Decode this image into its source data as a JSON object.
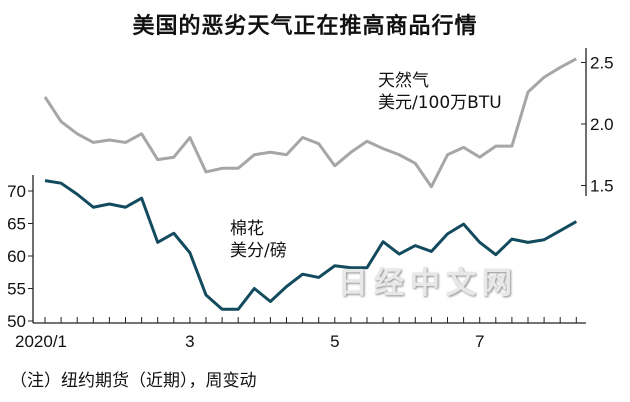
{
  "chart_data": {
    "type": "line",
    "title": "美国的恶劣天气正在推高商品行情",
    "note": "（注）纽约期货（近期），周变动",
    "watermark": "日经中文网",
    "x_tick_labels": [
      "2020/1",
      "3",
      "5",
      "7"
    ],
    "x_tick_label_index": [
      0,
      9,
      18,
      27
    ],
    "series": [
      {
        "name": "天然气",
        "unit": "美元/100万BTU",
        "axis": "right",
        "color": "#a6a6a6",
        "ylim": [
          1.4,
          2.6
        ],
        "yticks": [
          1.5,
          2.0,
          2.5
        ],
        "ytick_labels": [
          "1.5",
          "2.0",
          "2.5"
        ],
        "values": [
          2.22,
          2.02,
          1.92,
          1.85,
          1.87,
          1.85,
          1.92,
          1.71,
          1.73,
          1.89,
          1.61,
          1.64,
          1.64,
          1.75,
          1.77,
          1.75,
          1.89,
          1.84,
          1.66,
          1.77,
          1.86,
          1.8,
          1.75,
          1.68,
          1.49,
          1.75,
          1.81,
          1.73,
          1.82,
          1.82,
          2.26,
          2.38,
          2.46,
          2.53
        ]
      },
      {
        "name": "棉花",
        "unit": "美分/磅",
        "axis": "left",
        "color": "#124a5e",
        "ylim": [
          50,
          72
        ],
        "yticks": [
          50,
          55,
          60,
          65,
          70
        ],
        "ytick_labels": [
          "50",
          "55",
          "60",
          "65",
          "70"
        ],
        "values": [
          71.6,
          71.2,
          69.5,
          67.5,
          68,
          67.5,
          68.9,
          62.1,
          63.5,
          60.5,
          54,
          51.8,
          51.8,
          55,
          53,
          55.3,
          57.2,
          56.7,
          58.5,
          58.2,
          58.2,
          62.2,
          60.3,
          61.6,
          60.7,
          63.4,
          64.9,
          62.1,
          60.2,
          62.6,
          62.1,
          62.5,
          63.9,
          65.3
        ]
      }
    ]
  }
}
